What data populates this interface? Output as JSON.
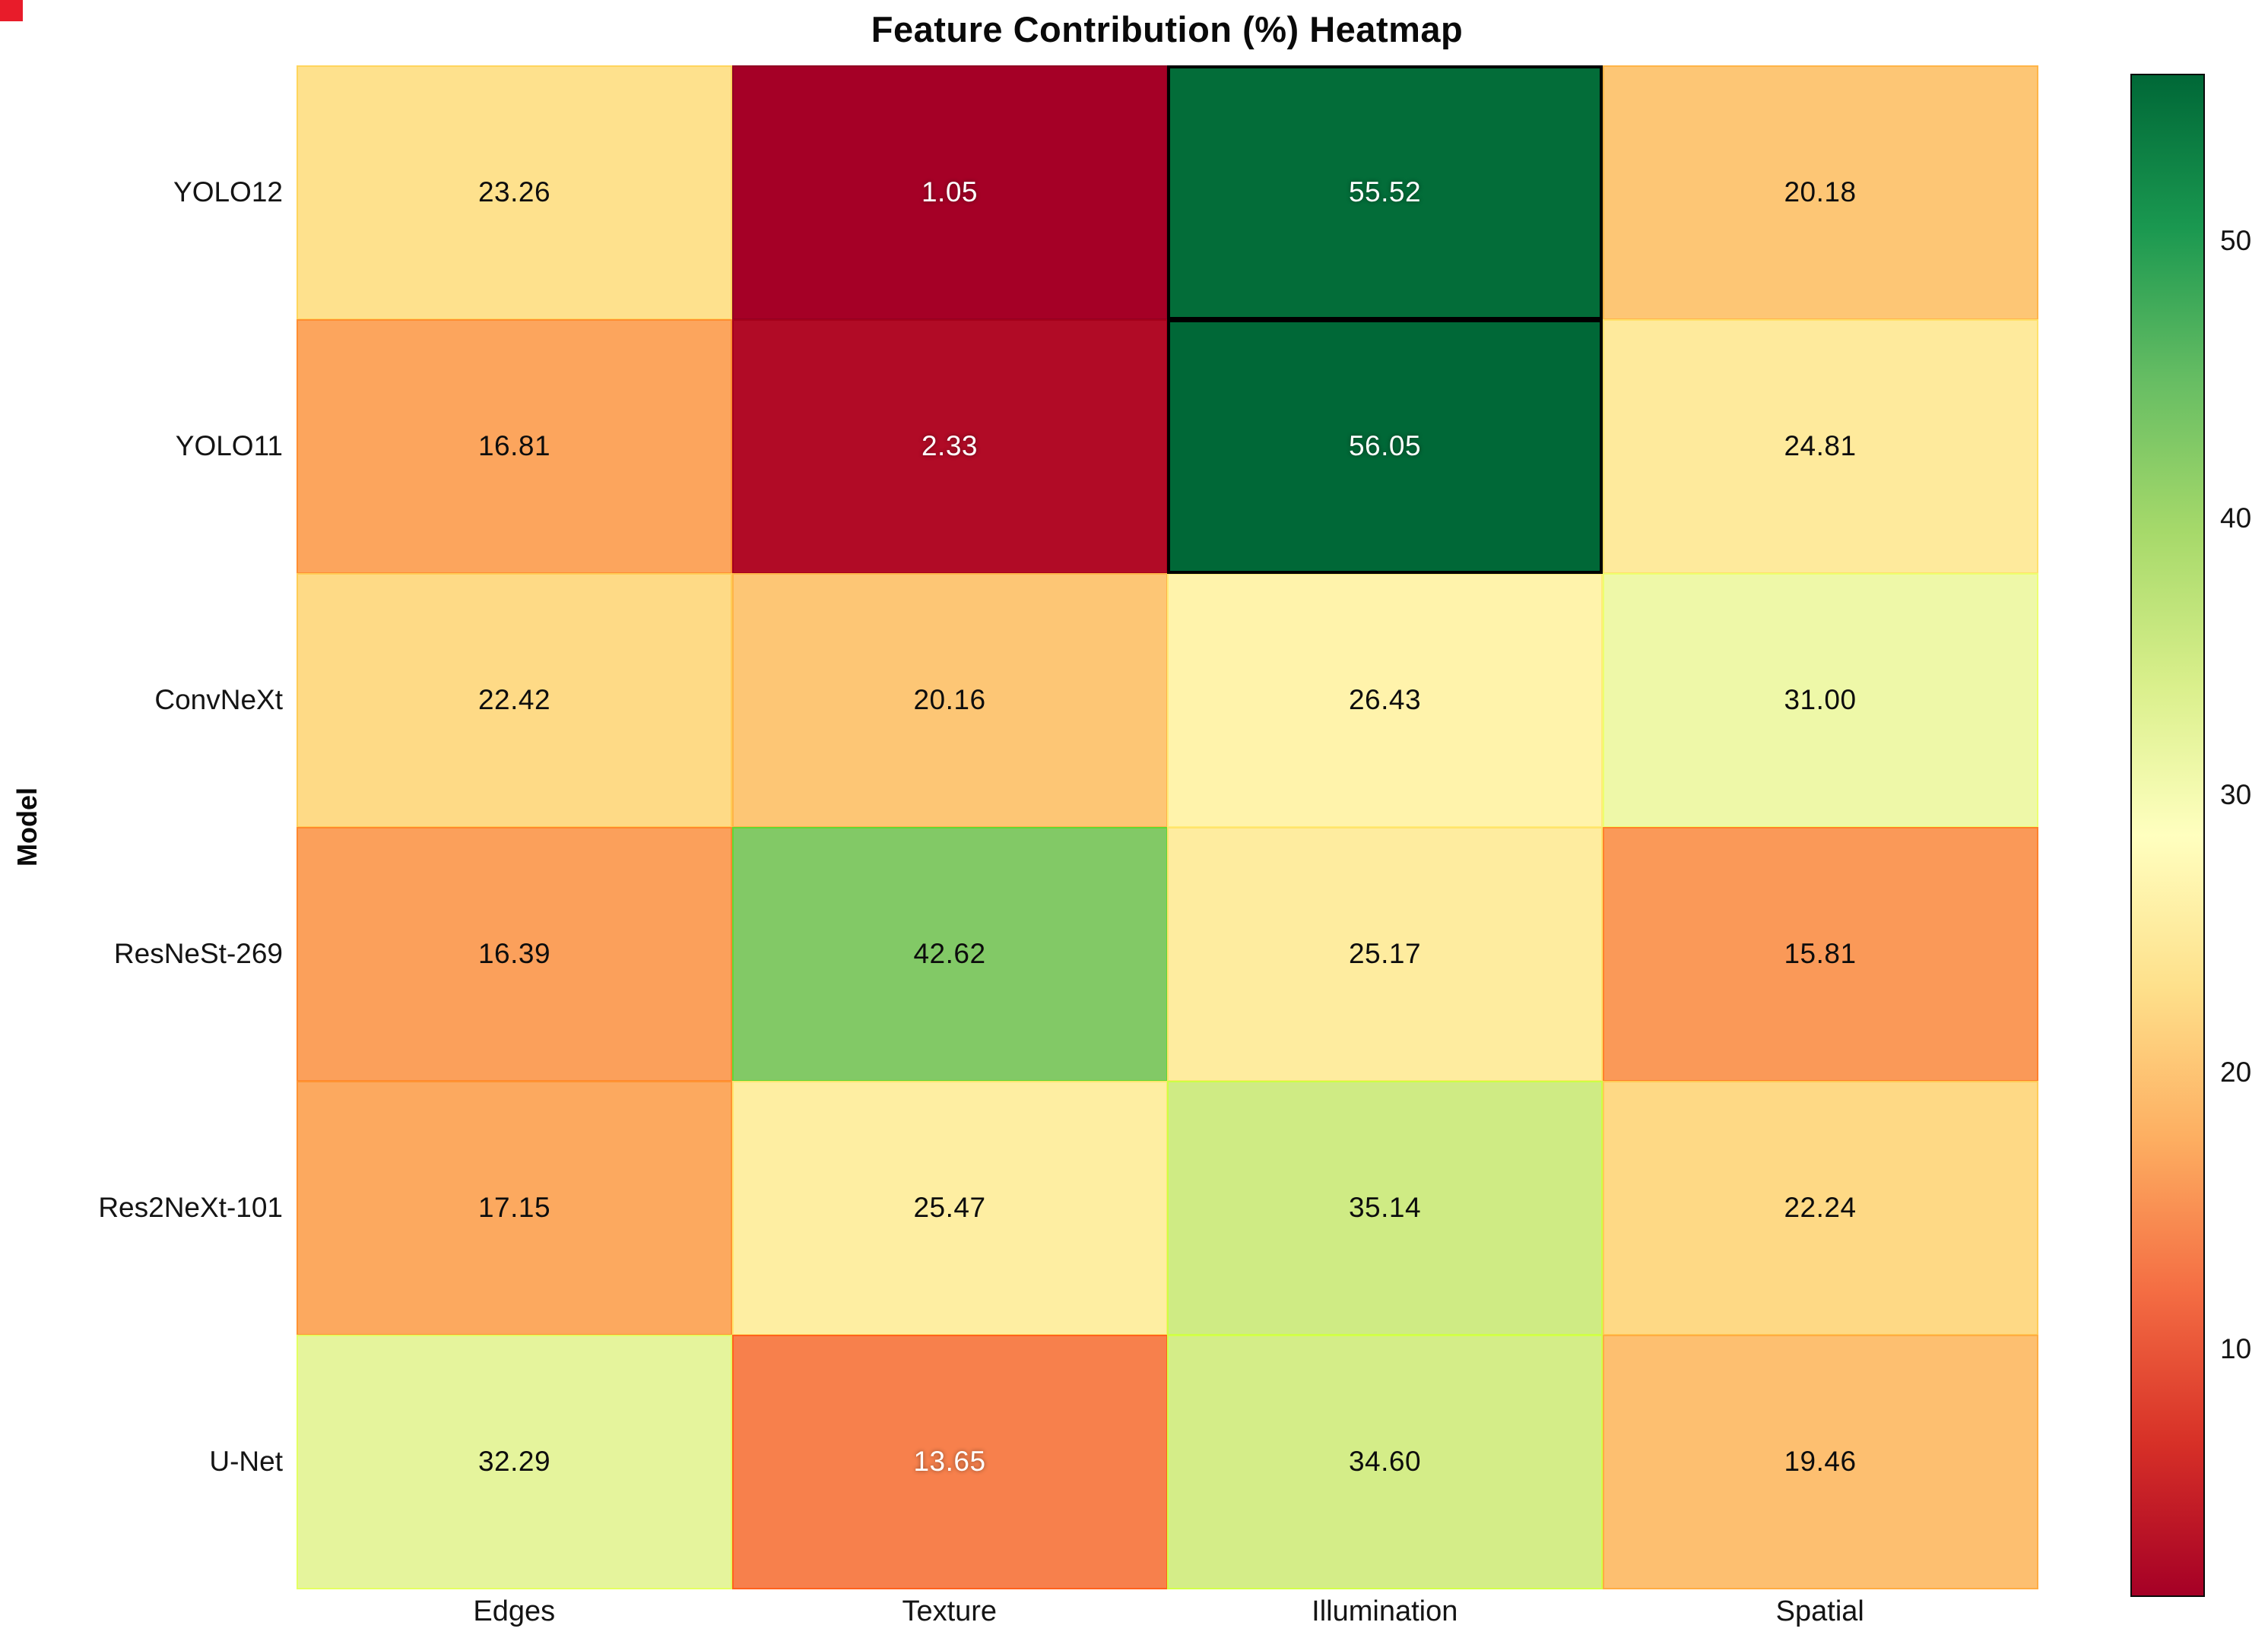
{
  "chart_data": {
    "type": "heatmap",
    "title": "Feature Contribution (%) Heatmap",
    "xlabel": "",
    "ylabel": "Model",
    "x_categories": [
      "Edges",
      "Texture",
      "Illumination",
      "Spatial"
    ],
    "y_categories": [
      "YOLO12",
      "YOLO11",
      "ConvNeXt",
      "ResNeSt-269",
      "Res2NeXt-101",
      "U-Net"
    ],
    "values": [
      [
        23.26,
        1.05,
        55.52,
        20.18
      ],
      [
        16.81,
        2.33,
        56.05,
        24.81
      ],
      [
        22.42,
        20.16,
        26.43,
        31.0
      ],
      [
        16.39,
        42.62,
        25.17,
        15.81
      ],
      [
        17.15,
        25.47,
        35.14,
        22.24
      ],
      [
        32.29,
        13.65,
        34.6,
        19.46
      ]
    ],
    "cell_label_decimals": 2,
    "vmin": 1.05,
    "vmax": 56.05,
    "colormap": "RdYlGn",
    "colormap_anchors": [
      "#a50026",
      "#d73027",
      "#f46d43",
      "#fdae61",
      "#fee08b",
      "#ffffbf",
      "#d9ef8b",
      "#a6d96a",
      "#66bd63",
      "#1a9850",
      "#006837"
    ],
    "colorbar_ticks": [
      10,
      20,
      30,
      40,
      50
    ],
    "colorbar_position": "right",
    "grid": false
  },
  "style": {
    "background": "#ffffff",
    "white_text_below": 15,
    "white_text_above": 50,
    "outline_black_above": 50,
    "outline_color": "#000000",
    "dark_text_color": "#0d0d0d",
    "light_text_color": "#ffffff",
    "corner_mark_color": "#e81c2a"
  }
}
